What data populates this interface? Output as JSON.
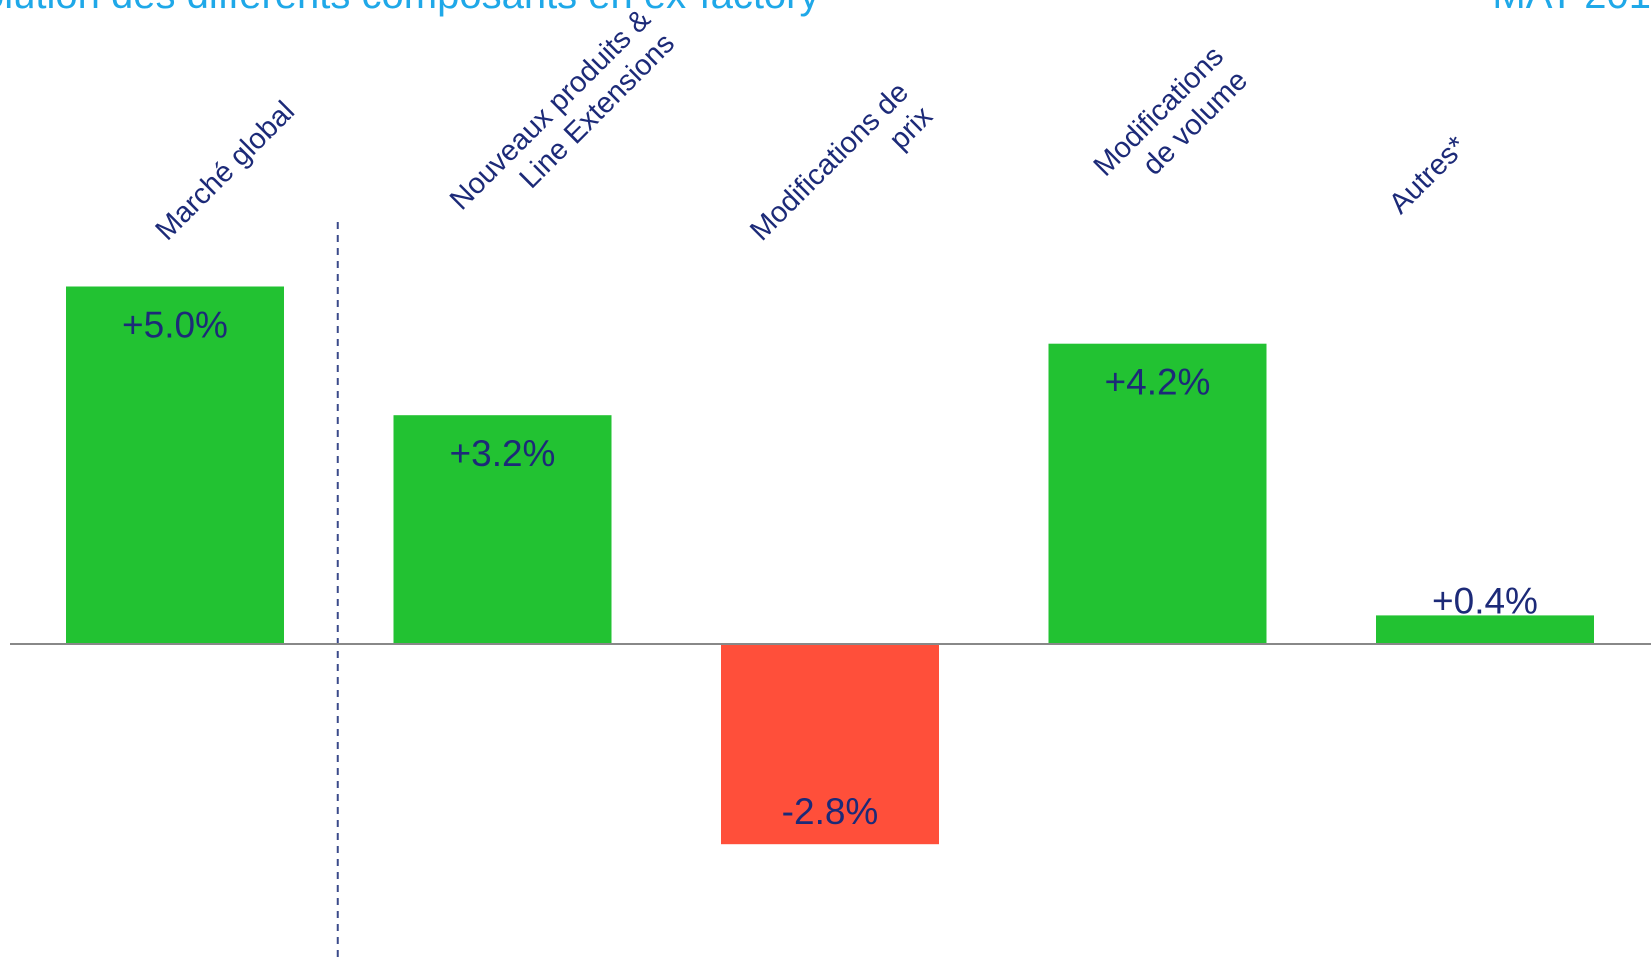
{
  "header": {
    "title": "olution des différents composants en ex-factory",
    "period": "MAT 201"
  },
  "colors": {
    "positive": "#22c232",
    "negative": "#ff4f3a",
    "label_text": "#1c2a78",
    "title_text": "#1fa8e8",
    "axis": "#888888",
    "separator": "#3a4a8a"
  },
  "chart_data": {
    "type": "bar",
    "categories": [
      [
        "Marché global"
      ],
      [
        "Nouveaux produits &",
        "Line Extensions"
      ],
      [
        "Modifications de",
        "prix"
      ],
      [
        "Modifications",
        "de volume"
      ],
      [
        "Autres*"
      ]
    ],
    "values": [
      5.0,
      3.2,
      -2.8,
      4.2,
      0.4
    ],
    "value_labels": [
      "+5.0%",
      "+3.2%",
      "-2.8%",
      "+4.2%",
      "+0.4%"
    ],
    "ylim": [
      -4.4,
      5.5
    ],
    "grid": false,
    "legend": "none",
    "separator_after_index": 0
  }
}
